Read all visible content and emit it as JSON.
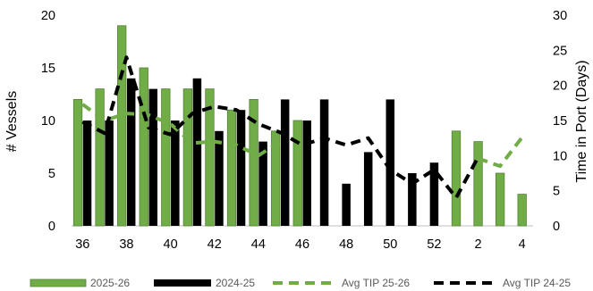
{
  "colors": {
    "green": "#70ad47",
    "green_edge": "#548235",
    "black": "#000000",
    "axis": "#bfbfbf",
    "title": "#2e75b6"
  },
  "chart_data": {
    "type": "bar",
    "title": "",
    "ylabel": "# Vessels",
    "y2label": "Time in Port (Days)",
    "ylim": [
      0,
      20
    ],
    "y2lim": [
      0,
      30
    ],
    "yticks": [
      "0",
      "5",
      "10",
      "15",
      "20"
    ],
    "y2ticks": [
      "0",
      "5",
      "10",
      "15",
      "20",
      "25",
      "30"
    ],
    "xtick_labels": [
      "36",
      "38",
      "40",
      "42",
      "44",
      "46",
      "48",
      "50",
      "52",
      "2",
      "4"
    ],
    "categories": [
      "36",
      "37",
      "38",
      "39",
      "40",
      "41",
      "42",
      "43",
      "44",
      "45",
      "46",
      "47",
      "48",
      "49",
      "50",
      "51",
      "52",
      "1",
      "2",
      "3",
      "4"
    ],
    "series": [
      {
        "name": "2025-26",
        "kind": "bar",
        "axis": "left",
        "values": [
          12,
          13,
          19,
          15,
          13,
          13,
          13,
          11,
          12,
          9,
          10,
          null,
          null,
          null,
          null,
          null,
          null,
          9,
          8,
          5,
          3
        ]
      },
      {
        "name": "2024-25",
        "kind": "bar",
        "axis": "left",
        "values": [
          10,
          10,
          14,
          13,
          10,
          14,
          9,
          11,
          8,
          12,
          10,
          12,
          4,
          7,
          12,
          5,
          6,
          null,
          null,
          null,
          null
        ]
      },
      {
        "name": "Avg TIP 25-26",
        "kind": "line",
        "axis": "right",
        "values": [
          17.3,
          15.0,
          16.0,
          15.8,
          14.5,
          11.8,
          12.0,
          11.5,
          10.0,
          12.0,
          null,
          null,
          null,
          null,
          null,
          null,
          null,
          null,
          9.6,
          8.5,
          12.6
        ]
      },
      {
        "name": "Avg TIP 24-25",
        "kind": "line",
        "axis": "right",
        "values": [
          14.8,
          13.2,
          24.0,
          14.0,
          13.0,
          16.0,
          17.0,
          16.5,
          14.5,
          13.3,
          11.5,
          12.5,
          11.5,
          12.5,
          8.0,
          6.0,
          8.0,
          4.0,
          9.8,
          null,
          null
        ]
      }
    ],
    "legend": {
      "position": "bottom"
    },
    "grid": false
  }
}
